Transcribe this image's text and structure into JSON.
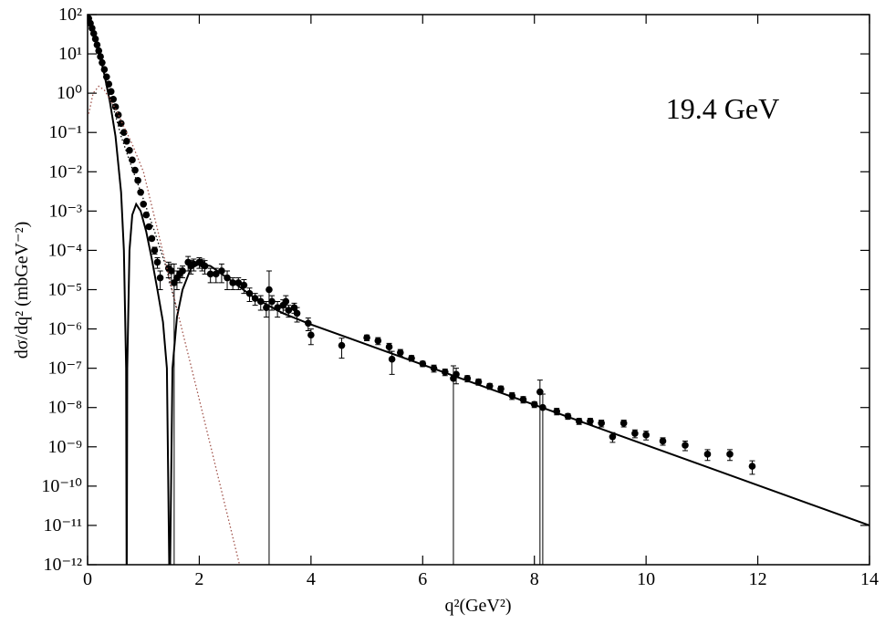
{
  "chart_data": {
    "type": "scatter",
    "annotation": "19.4 GeV",
    "xlabel": "q²(GeV²)",
    "ylabel": "dσ/dq² (mbGeV⁻²)",
    "log_y": true,
    "xlim": [
      0,
      14
    ],
    "xticks": [
      0,
      2,
      4,
      6,
      8,
      10,
      12,
      14
    ],
    "ylim": [
      1e-12,
      100
    ],
    "yticks": [
      {
        "value": 1e-12,
        "label": "10⁻¹²"
      },
      {
        "value": 1e-11,
        "label": "10⁻¹¹"
      },
      {
        "value": 1e-10,
        "label": "10⁻¹⁰"
      },
      {
        "value": 1e-09,
        "label": "10⁻⁹"
      },
      {
        "value": 1e-08,
        "label": "10⁻⁸"
      },
      {
        "value": 1e-07,
        "label": "10⁻⁷"
      },
      {
        "value": 1e-06,
        "label": "10⁻⁶"
      },
      {
        "value": 1e-05,
        "label": "10⁻⁵"
      },
      {
        "value": 0.0001,
        "label": "10⁻⁴"
      },
      {
        "value": 0.001,
        "label": "10⁻³"
      },
      {
        "value": 0.01,
        "label": "10⁻²"
      },
      {
        "value": 0.1,
        "label": "10⁻¹"
      },
      {
        "value": 1,
        "label": "10⁰"
      },
      {
        "value": 10,
        "label": "10¹"
      },
      {
        "value": 100,
        "label": "10²"
      }
    ],
    "series": [
      {
        "kind": "points",
        "color": "#000000",
        "x": [
          0.02,
          0.05,
          0.08,
          0.11,
          0.14,
          0.17,
          0.2,
          0.23,
          0.26,
          0.3,
          0.34,
          0.38,
          0.42,
          0.46,
          0.5,
          0.55,
          0.6,
          0.65,
          0.7,
          0.75,
          0.8,
          0.85,
          0.9,
          0.95,
          1.0,
          1.05,
          1.1,
          1.15,
          1.2,
          1.25,
          1.3,
          1.45,
          1.5,
          1.55,
          1.6,
          1.65,
          1.7,
          1.8,
          1.85,
          1.9,
          2.0,
          2.05,
          2.1,
          2.2,
          2.3,
          2.4,
          2.5,
          2.6,
          2.7,
          2.8,
          2.9,
          3.0,
          3.1,
          3.2,
          3.25,
          3.3,
          3.4,
          3.5,
          3.55,
          3.6,
          3.7,
          3.75,
          3.95,
          4.0,
          4.55,
          5.0,
          5.2,
          5.4,
          5.45,
          5.6,
          5.8,
          6.0,
          6.2,
          6.4,
          6.55,
          6.6,
          6.8,
          7.0,
          7.2,
          7.4,
          7.6,
          7.8,
          8.0,
          8.1,
          8.15,
          8.4,
          8.6,
          8.8,
          9.0,
          9.2,
          9.4,
          9.6,
          9.8,
          10.0,
          10.3,
          10.7,
          11.1,
          11.5,
          11.9
        ],
        "values": [
          80,
          60,
          45,
          33,
          24,
          17,
          12,
          8.5,
          6,
          4,
          2.6,
          1.7,
          1.1,
          0.7,
          0.45,
          0.28,
          0.17,
          0.1,
          0.06,
          0.035,
          0.02,
          0.011,
          0.006,
          0.003,
          0.0015,
          0.0008,
          0.0004,
          0.0002,
          0.0001,
          5e-05,
          2e-05,
          3.5e-05,
          3e-05,
          1.5e-05,
          2e-05,
          2.5e-05,
          3e-05,
          5e-05,
          4e-05,
          4.5e-05,
          5e-05,
          4.5e-05,
          4e-05,
          2.5e-05,
          2.5e-05,
          3e-05,
          2e-05,
          1.5e-05,
          1.5e-05,
          1.3e-05,
          8e-06,
          6e-06,
          5e-06,
          3.5e-06,
          1e-05,
          5e-06,
          3.5e-06,
          4e-06,
          5e-06,
          3e-06,
          3.5e-06,
          2.5e-06,
          1.4e-06,
          7e-07,
          3.8e-07,
          6e-07,
          5e-07,
          3.5e-07,
          1.7e-07,
          2.5e-07,
          1.8e-07,
          1.3e-07,
          1e-07,
          8e-08,
          5.5e-08,
          7e-08,
          5.5e-08,
          4.5e-08,
          3.5e-08,
          3e-08,
          2e-08,
          1.6e-08,
          1.2e-08,
          2.5e-08,
          1e-08,
          8e-09,
          6e-09,
          4.5e-09,
          4.5e-09,
          4e-09,
          1.8e-09,
          4e-09,
          2.2e-09,
          2e-09,
          1.4e-09,
          1.1e-09,
          6.5e-10,
          6.5e-10,
          3.2e-10
        ],
        "errors": [
          4,
          3,
          2,
          1.5,
          1,
          0.8,
          0.5,
          0.4,
          0.3,
          0.2,
          0.1,
          0.08,
          0.05,
          0.03,
          0.02,
          0.01,
          0.008,
          0.005,
          0.003,
          0.002,
          0.001,
          0.0005,
          0.0003,
          0.0002,
          0.0001,
          5e-05,
          3e-05,
          2e-05,
          2e-05,
          1.5e-05,
          1e-05,
          1.5e-05,
          1.5e-05,
          3e-05,
          1e-05,
          1e-05,
          1e-05,
          2e-05,
          1.5e-05,
          1.5e-05,
          1.5e-05,
          1.5e-05,
          1.5e-05,
          1e-05,
          1e-05,
          1.5e-05,
          1e-05,
          5e-06,
          5e-06,
          5e-06,
          3e-06,
          2e-06,
          2e-06,
          1.5e-06,
          2e-05,
          2e-06,
          1.5e-06,
          1.5e-06,
          2e-06,
          1e-06,
          1e-06,
          1e-06,
          5e-07,
          3e-07,
          2e-07,
          1e-07,
          1e-07,
          8e-08,
          1e-07,
          5e-08,
          3e-08,
          2e-08,
          2e-08,
          1.5e-08,
          6e-08,
          3e-08,
          1e-08,
          8e-09,
          6e-09,
          5e-09,
          4e-09,
          3e-09,
          2e-09,
          2.5e-08,
          1.2e-08,
          1.5e-09,
          1e-09,
          8e-10,
          8e-10,
          8e-10,
          5e-10,
          8e-10,
          5e-10,
          5e-10,
          3e-10,
          3e-10,
          2e-10,
          2e-10,
          1.2e-10
        ]
      },
      {
        "kind": "line",
        "style": "solid",
        "color": "#000000",
        "x": [
          0,
          0.1,
          0.2,
          0.3,
          0.4,
          0.5,
          0.6,
          0.65,
          0.69,
          0.7,
          0.71,
          0.75,
          0.8,
          0.87,
          0.95,
          1.05,
          1.15,
          1.25,
          1.35,
          1.42,
          1.47,
          1.52,
          1.6,
          1.7,
          1.85,
          2.0,
          2.2,
          2.5,
          3.0,
          3.5,
          4,
          14
        ],
        "values": [
          90,
          40,
          12,
          3,
          0.6,
          0.08,
          0.003,
          0.0001,
          1e-07,
          1e-13,
          1e-07,
          0.0001,
          0.0008,
          0.0015,
          0.001,
          0.0003,
          6e-05,
          1e-05,
          1.5e-06,
          1e-07,
          1e-13,
          1e-07,
          2e-06,
          1e-05,
          3.5e-05,
          4.5e-05,
          4e-05,
          2e-05,
          6e-06,
          2.5e-06,
          1.3e-06,
          1e-11
        ]
      },
      {
        "kind": "line",
        "style": "dotted",
        "color": "#000000",
        "x": [
          0,
          0.2,
          0.4,
          0.6,
          0.8,
          1.0,
          1.2,
          1.4,
          1.6
        ],
        "values": [
          90,
          12,
          0.9,
          0.08,
          0.012,
          0.002,
          0.0003,
          4e-05,
          3e-06
        ]
      },
      {
        "kind": "line",
        "style": "dotted",
        "color": "#a0524a",
        "x": [
          0.02,
          0.1,
          0.2,
          0.3,
          0.5,
          0.8,
          1.0,
          1.5,
          2.0,
          2.72
        ],
        "values": [
          0.3,
          1,
          1.5,
          1.2,
          0.4,
          0.05,
          0.01,
          1.2e-05,
          1.6e-08,
          1e-12
        ]
      }
    ]
  }
}
